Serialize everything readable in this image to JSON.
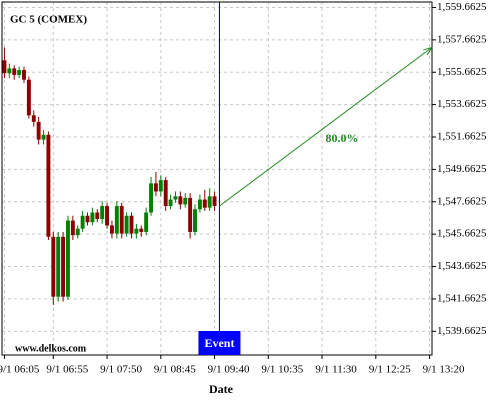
{
  "chart_data": {
    "type": "candlestick",
    "title": "GC 5 (COMEX)",
    "x_label": "Date",
    "watermark": "www.delkos.com",
    "event_label": "Event",
    "categories": [
      "9/1 06:05",
      null,
      null,
      null,
      null,
      null,
      null,
      null,
      null,
      null,
      "9/1 06:55",
      null,
      null,
      null,
      null,
      null,
      null,
      null,
      null,
      null,
      null,
      "9/1 07:50",
      null,
      null,
      null,
      null,
      null,
      null,
      null,
      null,
      null,
      null,
      "9/1 08:45",
      null,
      null,
      null,
      null,
      null,
      null,
      null,
      null,
      null,
      null,
      "9/1 09:40",
      null,
      null,
      null,
      null,
      null,
      null,
      null,
      null,
      null,
      null,
      "9/1 10:35",
      null,
      null,
      null,
      null,
      null,
      null,
      null,
      null,
      null,
      null,
      "9/1 11:30",
      null,
      null,
      null,
      null,
      null,
      null,
      null,
      null,
      null,
      null,
      "9/1 12:25",
      null,
      null,
      null,
      null,
      null,
      null,
      null,
      null,
      null,
      null,
      "9/1 13:20"
    ],
    "series": [
      {
        "up_color": "#008000",
        "down_color": "#8b0000",
        "open": [
          1556.4,
          1555.6,
          1555.9,
          1555.5,
          1555.8,
          1555.2,
          1553.0,
          1552.6,
          1551.5,
          1551.8,
          1545.5,
          1541.8,
          1545.5,
          1541.8,
          1546.5,
          1545.6,
          1546.0,
          1546.8,
          1546.4,
          1547.0,
          1546.6,
          1547.4,
          1546.2,
          1545.7,
          1547.4,
          1545.7,
          1546.8,
          1545.7,
          1546.0,
          1545.8,
          1547.0,
          1548.8,
          1548.3,
          1549.0,
          1547.4,
          1547.8,
          1548.0,
          1547.5,
          1547.9,
          1545.8,
          1547.2,
          1547.8,
          1547.3,
          1548.0,
          null,
          null,
          null,
          null,
          null,
          null,
          null,
          null,
          null,
          null,
          null,
          null,
          null,
          null,
          null,
          null,
          null,
          null,
          null,
          null,
          null,
          null,
          null,
          null,
          null,
          null,
          null,
          null,
          null,
          null,
          null,
          null,
          null,
          null,
          null,
          null,
          null,
          null,
          null,
          null,
          null,
          null,
          null,
          null
        ],
        "high": [
          1557.2,
          1556.2,
          1556.1,
          1556.0,
          1556.0,
          1555.4,
          1553.3,
          1552.9,
          1552.1,
          1552.0,
          1545.8,
          1545.8,
          1545.8,
          1546.8,
          1546.8,
          1546.2,
          1547.1,
          1547.0,
          1547.3,
          1547.2,
          1547.7,
          1547.6,
          1546.5,
          1547.7,
          1547.6,
          1547.0,
          1547.0,
          1546.3,
          1546.2,
          1547.3,
          1549.2,
          1549.5,
          1549.3,
          1549.2,
          1548.1,
          1548.3,
          1548.3,
          1548.2,
          1548.2,
          1547.5,
          1548.1,
          1548.4,
          1548.5,
          1548.3,
          null,
          null,
          null,
          null,
          null,
          null,
          null,
          null,
          null,
          null,
          null,
          null,
          null,
          null,
          null,
          null,
          null,
          null,
          null,
          null,
          null,
          null,
          null,
          null,
          null,
          null,
          null,
          null,
          null,
          null,
          null,
          null,
          null,
          null,
          null,
          null,
          null,
          null,
          null,
          null,
          null,
          null,
          null,
          null
        ],
        "low": [
          1555.3,
          1555.3,
          1555.2,
          1555.3,
          1555.0,
          1552.8,
          1552.3,
          1551.2,
          1551.2,
          1545.3,
          1541.3,
          1541.5,
          1541.5,
          1541.6,
          1545.3,
          1545.4,
          1545.8,
          1546.2,
          1546.2,
          1546.4,
          1546.3,
          1546.0,
          1545.4,
          1545.4,
          1545.4,
          1545.5,
          1545.4,
          1545.4,
          1545.5,
          1545.6,
          1546.8,
          1548.0,
          1548.0,
          1547.1,
          1547.2,
          1547.6,
          1547.2,
          1547.3,
          1545.4,
          1545.6,
          1547.0,
          1547.1,
          1547.1,
          1547.1,
          null,
          null,
          null,
          null,
          null,
          null,
          null,
          null,
          null,
          null,
          null,
          null,
          null,
          null,
          null,
          null,
          null,
          null,
          null,
          null,
          null,
          null,
          null,
          null,
          null,
          null,
          null,
          null,
          null,
          null,
          null,
          null,
          null,
          null,
          null,
          null,
          null,
          null,
          null,
          null,
          null,
          null,
          null,
          null
        ],
        "close": [
          1555.6,
          1555.9,
          1555.5,
          1555.8,
          1555.2,
          1553.0,
          1552.6,
          1551.5,
          1551.8,
          1545.5,
          1541.8,
          1545.5,
          1541.8,
          1546.5,
          1545.6,
          1546.0,
          1546.8,
          1546.4,
          1547.0,
          1546.6,
          1547.4,
          1546.2,
          1545.7,
          1547.4,
          1545.7,
          1546.8,
          1545.7,
          1546.0,
          1545.8,
          1547.0,
          1548.8,
          1548.3,
          1549.0,
          1547.4,
          1547.8,
          1548.0,
          1547.5,
          1547.9,
          1545.8,
          1547.2,
          1547.8,
          1547.3,
          1548.0,
          1547.4,
          null,
          null,
          null,
          null,
          null,
          null,
          null,
          null,
          null,
          null,
          null,
          null,
          null,
          null,
          null,
          null,
          null,
          null,
          null,
          null,
          null,
          null,
          null,
          null,
          null,
          null,
          null,
          null,
          null,
          null,
          null,
          null,
          null,
          null,
          null,
          null,
          null,
          null,
          null,
          null,
          null,
          null,
          null,
          null
        ]
      }
    ],
    "projection": {
      "start": 1547.4,
      "end": 1557.2,
      "label": "80.0%",
      "color": "#228b22"
    },
    "ylim": [
      1538.2,
      1560.0
    ],
    "yticks": [
      {
        "value": 1539.6625,
        "label": "1,539.6625"
      },
      {
        "value": 1541.6625,
        "label": "1,541.6625"
      },
      {
        "value": 1543.6625,
        "label": "1,543.6625"
      },
      {
        "value": 1545.6625,
        "label": "1,545.6625"
      },
      {
        "value": 1547.6625,
        "label": "1,547.6625"
      },
      {
        "value": 1549.6625,
        "label": "1,549.6625"
      },
      {
        "value": 1551.6625,
        "label": "1,551.6625"
      },
      {
        "value": 1553.6625,
        "label": "1,553.6625"
      },
      {
        "value": 1555.6625,
        "label": "1,555.6625"
      },
      {
        "value": 1557.6625,
        "label": "1,557.6625"
      },
      {
        "value": 1559.6625,
        "label": "1,559.6625"
      }
    ],
    "grid": true
  }
}
